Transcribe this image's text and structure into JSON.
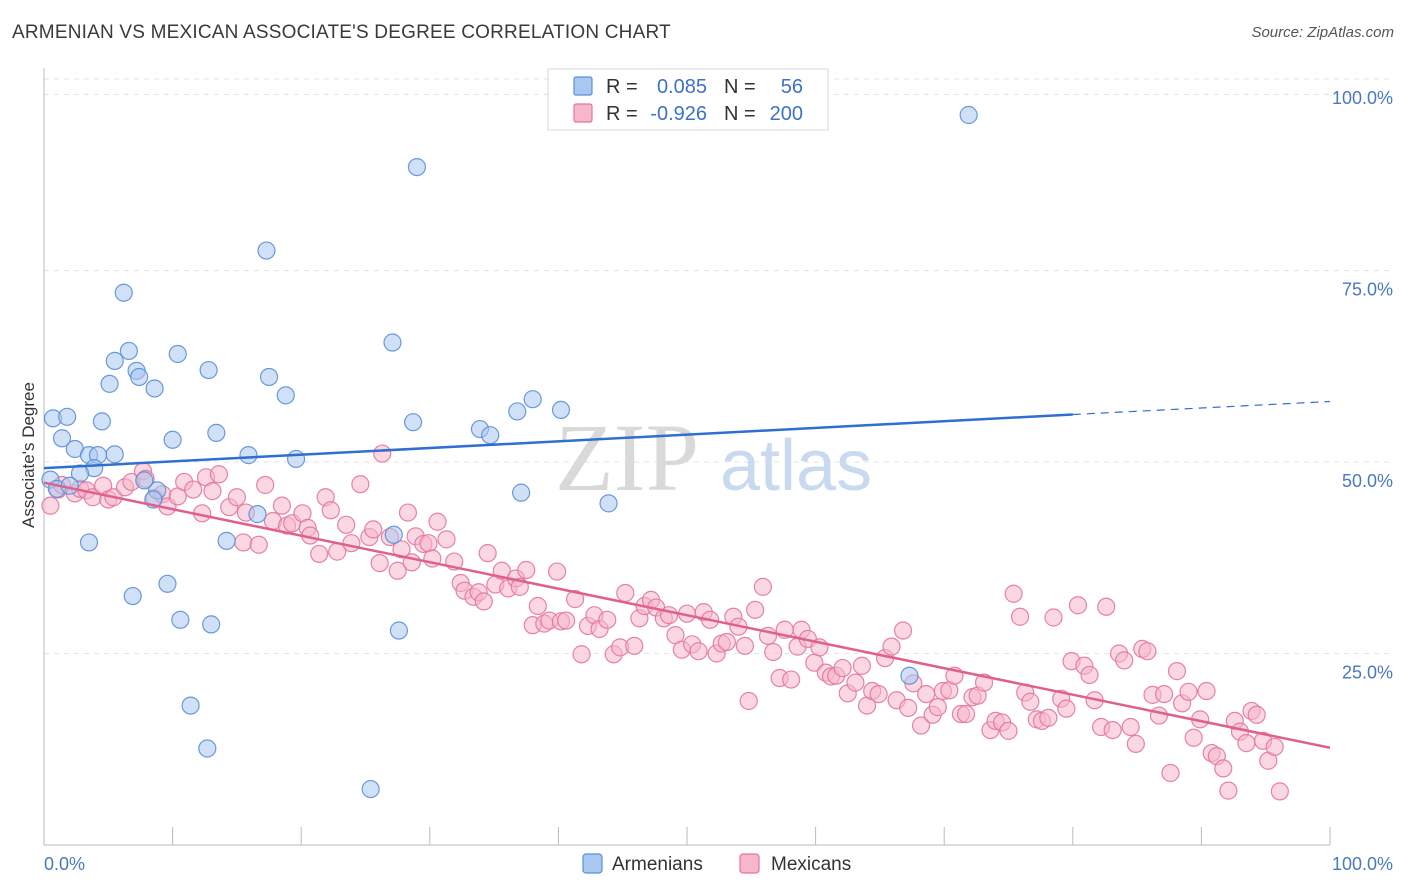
{
  "header": {
    "title": "ARMENIAN VS MEXICAN ASSOCIATE'S DEGREE CORRELATION CHART",
    "source": "Source: ZipAtlas.com"
  },
  "colors": {
    "blue_fill": "#a9c8f0",
    "blue_stroke": "#5b8fd6",
    "blue_line": "#2f6fcf",
    "pink_fill": "#f6b6cb",
    "pink_stroke": "#e4759b",
    "pink_line": "#e0608c",
    "grid": "#e3e3e3",
    "accent_text": "#3d72c9"
  },
  "watermark": {
    "zip": "ZIP",
    "atlas": "atlas"
  },
  "legend": {
    "rows": [
      {
        "r_label": "R =",
        "r_value": "0.085",
        "n_label": "N =",
        "n_value": "56"
      },
      {
        "r_label": "R =",
        "r_value": "-0.926",
        "n_label": "N =",
        "n_value": "200"
      }
    ]
  },
  "bottom_legend": {
    "armenians": "Armenians",
    "mexicans": "Mexicans"
  },
  "chart_data": {
    "type": "scatter",
    "title": "ARMENIAN VS MEXICAN ASSOCIATE'S DEGREE CORRELATION CHART",
    "xlabel": "",
    "ylabel": "Associate's Degree",
    "xlim": [
      0,
      100
    ],
    "ylim": [
      0,
      100
    ],
    "x_tick_labels": [
      "0.0%",
      "100.0%"
    ],
    "y_tick_labels": [
      "25.0%",
      "50.0%",
      "75.0%",
      "100.0%"
    ],
    "y_ticks": [
      25,
      50,
      75,
      100
    ],
    "grid": true,
    "series": [
      {
        "name": "Armenians",
        "r": 0.085,
        "n": 56,
        "trend": {
          "x0": 0,
          "y0": 49.2,
          "x1": 80,
          "y1": 56.2,
          "dash_to_x": 100,
          "dash_to_y": 57.9
        },
        "points": [
          [
            0.7,
            55.7
          ],
          [
            1.8,
            55.9
          ],
          [
            1.4,
            53.1
          ],
          [
            2.4,
            51.7
          ],
          [
            4.5,
            55.3
          ],
          [
            3.5,
            50.9
          ],
          [
            5.5,
            51.0
          ],
          [
            4.2,
            50.9
          ],
          [
            3.9,
            49.2
          ],
          [
            2.8,
            48.5
          ],
          [
            0.5,
            47.7
          ],
          [
            1.0,
            46.5
          ],
          [
            2.0,
            46.9
          ],
          [
            8.8,
            46.3
          ],
          [
            8.5,
            45.1
          ],
          [
            5.1,
            60.2
          ],
          [
            6.6,
            64.5
          ],
          [
            7.2,
            61.9
          ],
          [
            7.4,
            61.1
          ],
          [
            5.5,
            63.2
          ],
          [
            8.6,
            59.6
          ],
          [
            10.4,
            64.1
          ],
          [
            12.8,
            62.0
          ],
          [
            6.2,
            72.1
          ],
          [
            17.3,
            77.6
          ],
          [
            17.5,
            61.1
          ],
          [
            18.8,
            58.7
          ],
          [
            13.4,
            53.8
          ],
          [
            10.0,
            52.9
          ],
          [
            15.9,
            50.9
          ],
          [
            19.6,
            50.4
          ],
          [
            16.6,
            43.2
          ],
          [
            14.2,
            39.7
          ],
          [
            3.5,
            39.5
          ],
          [
            9.6,
            34.1
          ],
          [
            6.9,
            32.5
          ],
          [
            10.6,
            29.4
          ],
          [
            13.0,
            28.8
          ],
          [
            11.4,
            18.2
          ],
          [
            12.7,
            12.6
          ],
          [
            25.4,
            7.3
          ],
          [
            27.6,
            28.0
          ],
          [
            27.2,
            40.5
          ],
          [
            28.7,
            55.2
          ],
          [
            27.1,
            65.6
          ],
          [
            29.0,
            88.5
          ],
          [
            33.9,
            54.3
          ],
          [
            34.7,
            53.5
          ],
          [
            36.8,
            56.6
          ],
          [
            38.0,
            58.2
          ],
          [
            40.2,
            56.8
          ],
          [
            37.1,
            46.0
          ],
          [
            43.9,
            44.6
          ],
          [
            67.3,
            22.1
          ],
          [
            71.9,
            95.3
          ],
          [
            7.8,
            47.6
          ]
        ]
      },
      {
        "name": "Mexicans",
        "r": -0.926,
        "n": 200,
        "trend": {
          "x0": 0,
          "y0": 47.3,
          "x1": 100,
          "y1": 12.7
        },
        "points": [
          [
            0.5,
            44.3
          ],
          [
            1.1,
            46.4
          ],
          [
            1.4,
            47.0
          ],
          [
            2.4,
            45.9
          ],
          [
            2.8,
            46.5
          ],
          [
            3.3,
            46.3
          ],
          [
            3.8,
            45.4
          ],
          [
            4.6,
            46.9
          ],
          [
            5.0,
            45.1
          ],
          [
            5.4,
            45.4
          ],
          [
            6.3,
            46.7
          ],
          [
            6.8,
            47.4
          ],
          [
            7.7,
            48.8
          ],
          [
            7.9,
            47.8
          ],
          [
            8.6,
            45.3
          ],
          [
            9.2,
            45.8
          ],
          [
            9.6,
            44.2
          ],
          [
            10.4,
            45.5
          ],
          [
            10.9,
            47.4
          ],
          [
            11.6,
            46.4
          ],
          [
            12.3,
            43.3
          ],
          [
            12.6,
            48.0
          ],
          [
            13.1,
            46.2
          ],
          [
            13.6,
            48.4
          ],
          [
            14.4,
            44.1
          ],
          [
            15.0,
            45.4
          ],
          [
            15.5,
            39.5
          ],
          [
            15.7,
            43.4
          ],
          [
            16.7,
            39.2
          ],
          [
            17.2,
            47.0
          ],
          [
            17.8,
            42.3
          ],
          [
            18.5,
            44.3
          ],
          [
            18.9,
            41.7
          ],
          [
            19.3,
            42.0
          ],
          [
            20.1,
            43.3
          ],
          [
            20.5,
            41.4
          ],
          [
            20.7,
            40.4
          ],
          [
            21.4,
            38.0
          ],
          [
            21.9,
            45.4
          ],
          [
            22.3,
            43.7
          ],
          [
            22.8,
            38.3
          ],
          [
            23.5,
            41.8
          ],
          [
            23.9,
            39.4
          ],
          [
            24.6,
            47.1
          ],
          [
            25.3,
            40.2
          ],
          [
            25.6,
            41.2
          ],
          [
            26.1,
            36.8
          ],
          [
            26.3,
            51.1
          ],
          [
            26.9,
            40.2
          ],
          [
            27.5,
            35.8
          ],
          [
            27.8,
            38.6
          ],
          [
            28.3,
            43.4
          ],
          [
            28.6,
            36.9
          ],
          [
            28.9,
            40.3
          ],
          [
            29.5,
            39.3
          ],
          [
            29.9,
            39.4
          ],
          [
            30.2,
            37.4
          ],
          [
            30.6,
            42.2
          ],
          [
            31.3,
            39.9
          ],
          [
            31.9,
            37.0
          ],
          [
            32.4,
            34.2
          ],
          [
            32.7,
            33.2
          ],
          [
            33.4,
            32.4
          ],
          [
            33.8,
            33.0
          ],
          [
            34.2,
            31.8
          ],
          [
            34.5,
            38.1
          ],
          [
            35.1,
            34.0
          ],
          [
            35.6,
            35.8
          ],
          [
            36.1,
            33.5
          ],
          [
            36.7,
            34.8
          ],
          [
            37.0,
            33.7
          ],
          [
            37.5,
            35.9
          ],
          [
            38.0,
            28.7
          ],
          [
            38.4,
            31.2
          ],
          [
            38.9,
            28.9
          ],
          [
            39.3,
            29.3
          ],
          [
            39.9,
            35.7
          ],
          [
            40.2,
            29.2
          ],
          [
            40.6,
            29.3
          ],
          [
            41.3,
            32.1
          ],
          [
            41.8,
            24.9
          ],
          [
            42.3,
            28.6
          ],
          [
            42.8,
            30.0
          ],
          [
            43.2,
            28.2
          ],
          [
            43.8,
            29.4
          ],
          [
            44.3,
            24.9
          ],
          [
            44.8,
            25.8
          ],
          [
            45.2,
            32.9
          ],
          [
            45.9,
            26.0
          ],
          [
            46.3,
            29.6
          ],
          [
            46.7,
            31.2
          ],
          [
            47.2,
            32.0
          ],
          [
            47.6,
            31.0
          ],
          [
            48.2,
            29.6
          ],
          [
            48.6,
            30.0
          ],
          [
            49.1,
            27.4
          ],
          [
            49.6,
            25.5
          ],
          [
            50.0,
            30.2
          ],
          [
            50.4,
            26.2
          ],
          [
            50.9,
            25.3
          ],
          [
            51.3,
            30.4
          ],
          [
            51.8,
            29.4
          ],
          [
            52.3,
            25.0
          ],
          [
            52.7,
            26.3
          ],
          [
            53.1,
            26.5
          ],
          [
            53.6,
            29.8
          ],
          [
            54.0,
            28.5
          ],
          [
            54.5,
            26.0
          ],
          [
            54.8,
            18.8
          ],
          [
            55.3,
            30.7
          ],
          [
            55.9,
            33.7
          ],
          [
            56.3,
            27.3
          ],
          [
            56.7,
            25.2
          ],
          [
            57.2,
            21.8
          ],
          [
            57.6,
            28.1
          ],
          [
            58.1,
            21.6
          ],
          [
            58.6,
            25.9
          ],
          [
            58.9,
            28.1
          ],
          [
            59.4,
            26.9
          ],
          [
            59.9,
            23.8
          ],
          [
            60.3,
            25.8
          ],
          [
            60.8,
            22.5
          ],
          [
            61.2,
            22.0
          ],
          [
            61.6,
            22.1
          ],
          [
            62.1,
            23.1
          ],
          [
            62.5,
            19.8
          ],
          [
            63.1,
            21.2
          ],
          [
            63.6,
            23.4
          ],
          [
            64.0,
            18.2
          ],
          [
            64.4,
            20.1
          ],
          [
            64.9,
            19.7
          ],
          [
            65.4,
            24.4
          ],
          [
            65.9,
            25.9
          ],
          [
            66.3,
            18.9
          ],
          [
            66.8,
            28.0
          ],
          [
            67.2,
            17.9
          ],
          [
            67.6,
            21.1
          ],
          [
            68.2,
            15.6
          ],
          [
            68.6,
            19.7
          ],
          [
            69.1,
            17.0
          ],
          [
            69.5,
            18.0
          ],
          [
            69.9,
            20.1
          ],
          [
            70.4,
            20.2
          ],
          [
            70.8,
            22.1
          ],
          [
            71.3,
            17.1
          ],
          [
            71.7,
            17.1
          ],
          [
            72.2,
            19.3
          ],
          [
            72.6,
            19.5
          ],
          [
            73.1,
            21.2
          ],
          [
            73.6,
            15.0
          ],
          [
            74.0,
            16.2
          ],
          [
            74.5,
            16.0
          ],
          [
            75.0,
            14.9
          ],
          [
            75.4,
            32.8
          ],
          [
            75.9,
            29.8
          ],
          [
            76.3,
            19.9
          ],
          [
            76.7,
            18.7
          ],
          [
            77.2,
            16.4
          ],
          [
            77.6,
            16.2
          ],
          [
            78.1,
            16.6
          ],
          [
            78.5,
            29.7
          ],
          [
            79.1,
            19.1
          ],
          [
            79.5,
            17.8
          ],
          [
            79.9,
            24.0
          ],
          [
            80.4,
            31.3
          ],
          [
            80.9,
            23.4
          ],
          [
            81.3,
            22.2
          ],
          [
            81.7,
            18.9
          ],
          [
            82.2,
            15.4
          ],
          [
            82.6,
            31.1
          ],
          [
            83.1,
            15.0
          ],
          [
            83.6,
            25.0
          ],
          [
            84.0,
            24.1
          ],
          [
            84.5,
            15.4
          ],
          [
            84.9,
            13.2
          ],
          [
            85.4,
            25.6
          ],
          [
            85.8,
            25.3
          ],
          [
            86.2,
            19.6
          ],
          [
            86.7,
            16.9
          ],
          [
            87.1,
            19.7
          ],
          [
            87.6,
            9.4
          ],
          [
            88.1,
            22.7
          ],
          [
            88.5,
            18.5
          ],
          [
            89.0,
            20.0
          ],
          [
            89.4,
            14.0
          ],
          [
            89.9,
            16.4
          ],
          [
            90.4,
            20.1
          ],
          [
            90.8,
            12.0
          ],
          [
            91.2,
            11.6
          ],
          [
            91.7,
            10.0
          ],
          [
            92.1,
            7.1
          ],
          [
            92.6,
            16.2
          ],
          [
            93.0,
            14.8
          ],
          [
            93.5,
            13.3
          ],
          [
            93.9,
            17.5
          ],
          [
            94.3,
            17.0
          ],
          [
            94.8,
            13.6
          ],
          [
            95.2,
            11.0
          ],
          [
            95.7,
            12.8
          ],
          [
            96.1,
            7.0
          ]
        ]
      }
    ]
  }
}
